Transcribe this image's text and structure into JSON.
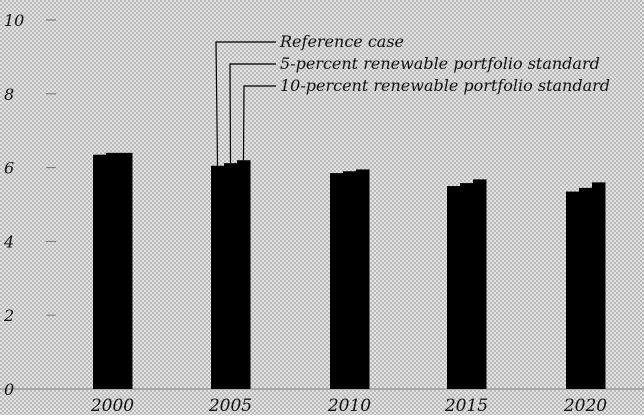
{
  "chart_data": {
    "type": "bar",
    "categories": [
      "2000",
      "2005",
      "2010",
      "2015",
      "2020"
    ],
    "series": [
      {
        "name": "Reference case",
        "values": [
          6.35,
          6.05,
          5.85,
          5.5,
          5.35
        ]
      },
      {
        "name": "5-percent renewable portfolio standard",
        "values": [
          6.4,
          6.12,
          5.9,
          5.58,
          5.45
        ]
      },
      {
        "name": "10-percent renewable portfolio standard",
        "values": [
          6.4,
          6.2,
          5.95,
          5.68,
          5.6
        ]
      }
    ],
    "ylim": [
      0,
      10
    ],
    "yticks": [
      "0",
      "2",
      "4",
      "6",
      "8",
      "10"
    ],
    "grid": false,
    "legend": "top-center, leader lines to 2005 bars",
    "colors": {
      "bars": "#000000",
      "background": "#d9d9d9",
      "axis": "#777777"
    }
  }
}
